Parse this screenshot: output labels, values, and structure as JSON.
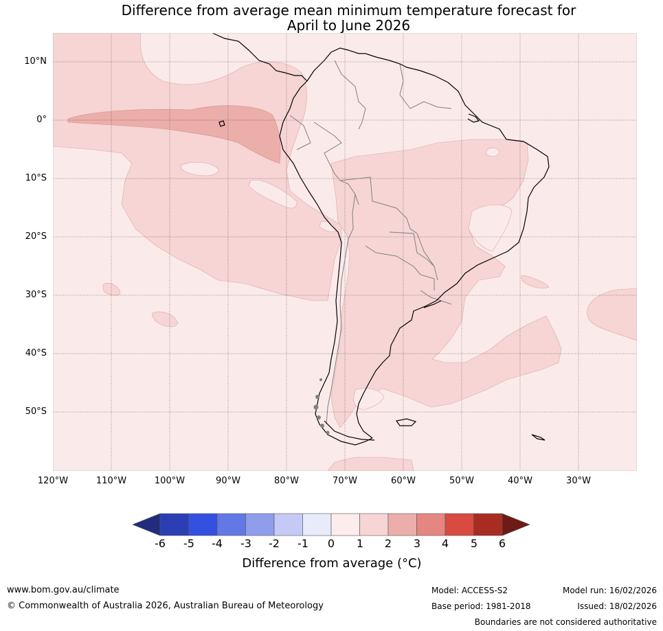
{
  "title": {
    "line1": "Difference from average mean minimum temperature forecast for",
    "line2": "April to June 2026"
  },
  "map": {
    "lat_labels": [
      "10°N",
      "0°",
      "10°S",
      "20°S",
      "30°S",
      "40°S",
      "50°S"
    ],
    "lon_labels": [
      "120°W",
      "110°W",
      "100°W",
      "90°W",
      "80°W",
      "70°W",
      "60°W",
      "50°W",
      "40°W",
      "30°W"
    ],
    "colors": {
      "class_0_1": "#fbeaea",
      "class_1_2": "#f6d5d4",
      "class_2_3": "#ecaeab",
      "coast": "#000000",
      "border": "#808080"
    }
  },
  "colorbar": {
    "ticks": [
      "-6",
      "-5",
      "-4",
      "-3",
      "-2",
      "-1",
      "0",
      "1",
      "2",
      "3",
      "4",
      "5",
      "6"
    ],
    "colors": [
      "#212c7c",
      "#2b3fb5",
      "#3350e0",
      "#6278e6",
      "#8f9ded",
      "#c4caf5",
      "#e8ebfa",
      "#fcecec",
      "#f6d5d4",
      "#ecaeab",
      "#e68680",
      "#d94a40",
      "#a82c22",
      "#6e1a17"
    ],
    "label": "Difference from average (°C)"
  },
  "footer": {
    "website": "www.bom.gov.au/climate",
    "copyright": "© Commonwealth of Australia 2026, Australian Bureau of Meteorology",
    "model": "Model: ACCESS-S2",
    "base_period": "Base period: 1981-2018",
    "model_run": "Model run: 16/02/2026",
    "issued": "Issued: 18/02/2026",
    "disclaimer": "Boundaries are not considered authoritative"
  }
}
